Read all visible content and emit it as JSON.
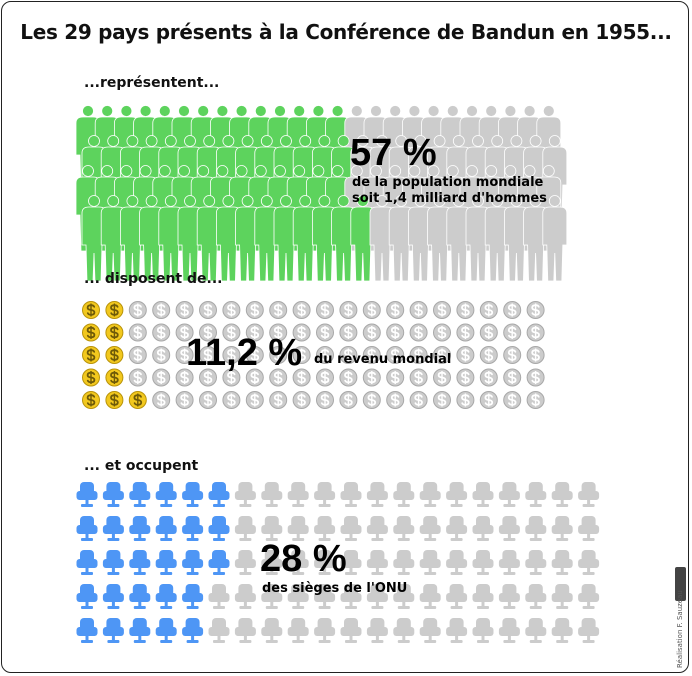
{
  "title": "Les 29 pays présents à la Conférence de Bandun en 1955...",
  "colors": {
    "people": "#5dd35d",
    "coins": "#f2c81e",
    "seats": "#4e96f5",
    "inactive": "#cccccc"
  },
  "chart_data": [
    {
      "type": "pictogram",
      "icon": "person-icon",
      "section_label": "...représentent...",
      "value_label": "57 %",
      "description": [
        "de la population mondiale",
        "soit 1,4 milliard d'hommes"
      ],
      "value": 57,
      "total": 100
    },
    {
      "type": "pictogram",
      "icon": "dollar-coin-icon",
      "section_label": "... disposent de...",
      "value_label": "11,2 %",
      "description": [
        "du revenu mondial"
      ],
      "value": 11.2,
      "total": 100
    },
    {
      "type": "pictogram",
      "icon": "seat-icon",
      "section_label": "... et occupent",
      "value_label": "28 %",
      "description": [
        "des sièges de l'ONU"
      ],
      "value": 28,
      "total": 100
    }
  ],
  "credit": "Réalisation F. Sauzeau",
  "license_badge": "cc-by-sa"
}
